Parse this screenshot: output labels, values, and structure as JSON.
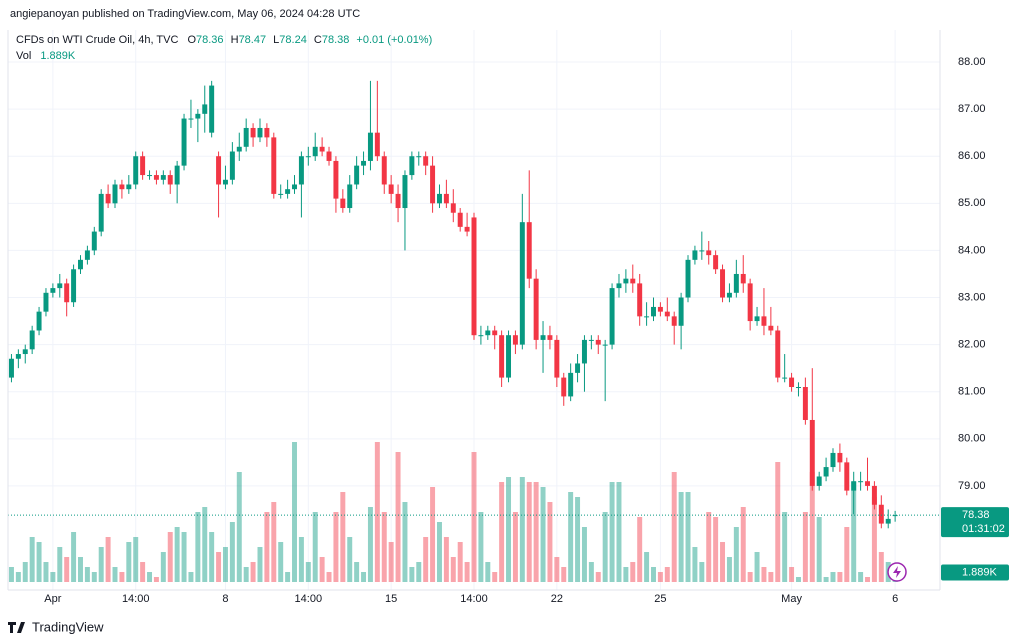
{
  "chart_data": {
    "type": "candlestick",
    "publisher": "angiepanoyan published on TradingView.com, May 06, 2024 04:28 UTC",
    "title": "CFDs on WTI Crude Oil, 4h, TVC",
    "ohlc_labels": [
      "O",
      "H",
      "L",
      "C"
    ],
    "change_label": "+0.01 (+0.01%)",
    "countdown": "01:31:02",
    "brand": "TradingView",
    "up_color": "#089981",
    "down_color": "#f23645",
    "grid": true,
    "xlim": [
      -0.5,
      134.5
    ],
    "ylim": [
      76.79,
      88.68
    ],
    "yticks": [
      {
        "value": 79,
        "label": "79.00"
      },
      {
        "value": 80,
        "label": "80.00"
      },
      {
        "value": 81,
        "label": "81.00"
      },
      {
        "value": 82,
        "label": "82.00"
      },
      {
        "value": 83,
        "label": "83.00"
      },
      {
        "value": 84,
        "label": "84.00"
      },
      {
        "value": 85,
        "label": "85.00"
      },
      {
        "value": 86,
        "label": "86.00"
      },
      {
        "value": 87,
        "label": "87.00"
      },
      {
        "value": 88,
        "label": "88.00"
      }
    ],
    "xticks": [
      {
        "value": 6,
        "label": "Apr"
      },
      {
        "value": 18,
        "label": "14:00"
      },
      {
        "value": 31,
        "label": "8"
      },
      {
        "value": 43,
        "label": "14:00"
      },
      {
        "value": 55,
        "label": "15"
      },
      {
        "value": 67,
        "label": "14:00"
      },
      {
        "value": 79,
        "label": "22"
      },
      {
        "value": 94,
        "label": "25"
      },
      {
        "value": 113,
        "label": "May"
      },
      {
        "value": 128,
        "label": "6"
      }
    ],
    "candles": [
      [
        81.3,
        81.8,
        81.2,
        81.7
      ],
      [
        81.7,
        81.9,
        81.5,
        81.8
      ],
      [
        81.8,
        82.0,
        81.6,
        81.9
      ],
      [
        81.9,
        82.4,
        81.8,
        82.3
      ],
      [
        82.3,
        82.8,
        82.2,
        82.7
      ],
      [
        82.7,
        83.2,
        82.6,
        83.1
      ],
      [
        83.1,
        83.3,
        83.0,
        83.2
      ],
      [
        83.2,
        83.5,
        83.0,
        83.3
      ],
      [
        83.3,
        83.4,
        82.6,
        82.9
      ],
      [
        82.9,
        83.7,
        82.8,
        83.6
      ],
      [
        83.6,
        83.9,
        83.5,
        83.8
      ],
      [
        83.8,
        84.1,
        83.7,
        84.0
      ],
      [
        84.0,
        84.5,
        83.9,
        84.4
      ],
      [
        84.4,
        85.3,
        84.3,
        85.2
      ],
      [
        85.2,
        85.4,
        84.9,
        85.0
      ],
      [
        85.0,
        85.5,
        84.9,
        85.4
      ],
      [
        85.4,
        85.5,
        85.1,
        85.3
      ],
      [
        85.3,
        85.6,
        85.2,
        85.4
      ],
      [
        85.4,
        86.1,
        85.3,
        86.0
      ],
      [
        86.0,
        86.1,
        85.5,
        85.6
      ],
      [
        85.6,
        85.7,
        85.5,
        85.6
      ],
      [
        85.6,
        85.7,
        85.4,
        85.5
      ],
      [
        85.5,
        85.7,
        85.4,
        85.6
      ],
      [
        85.6,
        85.7,
        85.2,
        85.4
      ],
      [
        85.4,
        85.9,
        85.0,
        85.8
      ],
      [
        85.8,
        86.9,
        85.7,
        86.8
      ],
      [
        86.8,
        87.2,
        86.6,
        86.8
      ],
      [
        86.8,
        87.0,
        86.3,
        86.9
      ],
      [
        86.9,
        87.5,
        86.5,
        87.1
      ],
      [
        86.5,
        87.6,
        86.4,
        87.5
      ],
      [
        86.0,
        86.1,
        84.7,
        85.4
      ],
      [
        85.4,
        85.8,
        85.3,
        85.5
      ],
      [
        85.5,
        86.3,
        85.4,
        86.1
      ],
      [
        86.1,
        86.5,
        85.9,
        86.2
      ],
      [
        86.2,
        86.8,
        86.1,
        86.6
      ],
      [
        86.6,
        86.7,
        86.2,
        86.4
      ],
      [
        86.4,
        86.8,
        86.3,
        86.6
      ],
      [
        86.6,
        86.7,
        86.2,
        86.4
      ],
      [
        86.4,
        86.5,
        85.1,
        85.2
      ],
      [
        85.2,
        85.4,
        85.1,
        85.2
      ],
      [
        85.2,
        85.5,
        85.1,
        85.3
      ],
      [
        85.3,
        85.6,
        85.2,
        85.4
      ],
      [
        85.4,
        86.1,
        84.7,
        86.0
      ],
      [
        86.0,
        86.2,
        85.8,
        86.0
      ],
      [
        86.0,
        86.5,
        85.9,
        86.2
      ],
      [
        86.2,
        86.4,
        86.0,
        86.1
      ],
      [
        86.1,
        86.2,
        85.8,
        85.9
      ],
      [
        85.9,
        86.0,
        84.8,
        85.1
      ],
      [
        85.1,
        85.3,
        84.8,
        84.9
      ],
      [
        84.9,
        85.6,
        84.8,
        85.4
      ],
      [
        85.4,
        86.0,
        85.3,
        85.8
      ],
      [
        85.8,
        86.1,
        85.6,
        85.9
      ],
      [
        85.9,
        87.6,
        85.7,
        86.5
      ],
      [
        86.5,
        87.6,
        85.9,
        86.0
      ],
      [
        86.0,
        86.1,
        85.2,
        85.4
      ],
      [
        85.4,
        85.6,
        85.0,
        85.2
      ],
      [
        85.2,
        85.4,
        84.6,
        84.9
      ],
      [
        84.9,
        85.7,
        84.0,
        85.6
      ],
      [
        85.6,
        86.1,
        85.5,
        86.0
      ],
      [
        86.0,
        86.1,
        85.8,
        86.0
      ],
      [
        86.0,
        86.1,
        85.6,
        85.8
      ],
      [
        85.8,
        86.0,
        84.8,
        85.0
      ],
      [
        85.0,
        85.4,
        84.9,
        85.2
      ],
      [
        85.2,
        85.5,
        84.9,
        85.0
      ],
      [
        85.0,
        85.3,
        84.6,
        84.8
      ],
      [
        84.8,
        84.9,
        84.4,
        84.5
      ],
      [
        84.5,
        84.8,
        84.3,
        84.4
      ],
      [
        84.7,
        84.8,
        82.1,
        82.2
      ],
      [
        82.2,
        82.4,
        82.0,
        82.2
      ],
      [
        82.2,
        82.4,
        82.1,
        82.3
      ],
      [
        82.3,
        82.4,
        81.9,
        82.2
      ],
      [
        82.2,
        82.3,
        81.1,
        81.3
      ],
      [
        81.3,
        82.3,
        81.2,
        82.2
      ],
      [
        82.2,
        82.3,
        81.8,
        82.0
      ],
      [
        82.0,
        85.2,
        81.9,
        84.6
      ],
      [
        84.6,
        85.7,
        83.2,
        83.4
      ],
      [
        83.4,
        83.6,
        81.9,
        82.1
      ],
      [
        82.1,
        82.5,
        81.4,
        82.2
      ],
      [
        82.2,
        82.4,
        81.9,
        82.1
      ],
      [
        82.1,
        82.2,
        81.1,
        81.3
      ],
      [
        81.3,
        81.4,
        80.7,
        80.9
      ],
      [
        80.9,
        81.6,
        80.8,
        81.4
      ],
      [
        81.4,
        81.8,
        81.2,
        81.6
      ],
      [
        81.6,
        82.2,
        81.0,
        82.1
      ],
      [
        82.1,
        82.2,
        81.9,
        82.1
      ],
      [
        82.1,
        82.2,
        81.8,
        82.0
      ],
      [
        82.0,
        82.1,
        80.8,
        82.0
      ],
      [
        82.0,
        83.3,
        81.9,
        83.2
      ],
      [
        83.2,
        83.5,
        83.0,
        83.3
      ],
      [
        83.3,
        83.6,
        83.1,
        83.4
      ],
      [
        83.4,
        83.7,
        83.1,
        83.3
      ],
      [
        83.3,
        83.5,
        82.4,
        82.6
      ],
      [
        82.6,
        82.9,
        82.4,
        82.6
      ],
      [
        82.6,
        83.0,
        82.5,
        82.8
      ],
      [
        82.8,
        82.9,
        82.6,
        82.7
      ],
      [
        82.7,
        83.0,
        82.5,
        82.6
      ],
      [
        82.6,
        82.7,
        82.0,
        82.4
      ],
      [
        82.4,
        83.1,
        81.9,
        83.0
      ],
      [
        83.0,
        83.9,
        82.9,
        83.8
      ],
      [
        83.8,
        84.1,
        83.7,
        84.0
      ],
      [
        84.0,
        84.4,
        83.8,
        84.0
      ],
      [
        84.0,
        84.2,
        83.7,
        83.9
      ],
      [
        83.9,
        84.0,
        83.5,
        83.6
      ],
      [
        83.6,
        83.7,
        82.9,
        83.0
      ],
      [
        83.0,
        83.3,
        82.9,
        83.1
      ],
      [
        83.1,
        83.8,
        83.0,
        83.5
      ],
      [
        83.5,
        83.9,
        83.1,
        83.3
      ],
      [
        83.3,
        83.4,
        82.3,
        82.5
      ],
      [
        82.5,
        82.8,
        82.4,
        82.6
      ],
      [
        82.6,
        83.2,
        82.2,
        82.4
      ],
      [
        82.4,
        82.8,
        82.2,
        82.3
      ],
      [
        82.3,
        82.4,
        81.2,
        81.3
      ],
      [
        81.3,
        81.8,
        81.2,
        81.3
      ],
      [
        81.3,
        81.4,
        81.0,
        81.1
      ],
      [
        81.1,
        81.2,
        80.9,
        81.1
      ],
      [
        81.1,
        81.3,
        80.3,
        80.4
      ],
      [
        80.4,
        81.5,
        78.9,
        79.0
      ],
      [
        79.0,
        79.3,
        78.9,
        79.2
      ],
      [
        79.2,
        79.6,
        79.1,
        79.4
      ],
      [
        79.4,
        79.8,
        79.3,
        79.7
      ],
      [
        79.7,
        79.9,
        79.3,
        79.5
      ],
      [
        79.5,
        79.6,
        78.8,
        78.9
      ],
      [
        78.9,
        79.3,
        78.4,
        79.1
      ],
      [
        79.1,
        79.3,
        78.9,
        79.1
      ],
      [
        79.1,
        79.6,
        78.9,
        79.0
      ],
      [
        79.0,
        79.1,
        78.5,
        78.6
      ],
      [
        78.6,
        78.8,
        78.1,
        78.2
      ],
      [
        78.2,
        78.5,
        78.1,
        78.3
      ],
      [
        78.36,
        78.47,
        78.24,
        78.38
      ]
    ],
    "volume": {
      "name": "Vol",
      "vlim": [
        0,
        30000
      ],
      "values": [
        3000,
        2000,
        4000,
        9000,
        8000,
        4000,
        2000,
        7000,
        5000,
        10000,
        5000,
        3000,
        2000,
        7000,
        9000,
        3000,
        2000,
        8000,
        9000,
        4000,
        2000,
        1000,
        6000,
        10000,
        11000,
        10000,
        2000,
        14000,
        15000,
        10000,
        6000,
        7000,
        12000,
        22000,
        3000,
        4000,
        7000,
        14000,
        16000,
        8000,
        2000,
        28000,
        9000,
        4000,
        14000,
        5000,
        2000,
        14000,
        18000,
        9000,
        4000,
        2000,
        15000,
        28000,
        14000,
        8000,
        26000,
        16000,
        3000,
        4000,
        9000,
        19000,
        12000,
        9000,
        5000,
        8000,
        4000,
        26000,
        14000,
        4000,
        2000,
        20000,
        21000,
        14000,
        21000,
        20000,
        20000,
        19000,
        16000,
        5000,
        3000,
        18000,
        17000,
        11000,
        4000,
        2000,
        14000,
        20000,
        20000,
        3000,
        4000,
        13000,
        6000,
        3000,
        2000,
        3000,
        22000,
        18000,
        18000,
        7000,
        4000,
        14000,
        13000,
        8000,
        5000,
        11000,
        15000,
        2000,
        6000,
        3000,
        2000,
        24000,
        14000,
        3000,
        1000,
        14000,
        22000,
        13000,
        1000,
        2000,
        2000,
        11000,
        20000,
        2000,
        1000,
        17000,
        6000,
        4000,
        1889
      ],
      "value_labels": [
        null,
        null,
        null,
        null,
        null,
        null,
        null,
        null,
        null,
        null,
        null,
        null,
        null,
        null,
        null,
        null,
        null,
        null,
        null,
        null,
        null,
        null,
        null,
        null,
        null,
        null,
        null,
        null,
        null,
        null,
        null,
        null,
        null,
        null,
        null,
        null,
        null,
        null,
        null,
        null,
        null,
        null,
        null,
        null,
        null,
        null,
        null,
        null,
        null,
        null,
        null,
        null,
        null,
        null,
        null,
        null,
        null,
        null,
        null,
        null,
        null,
        null,
        null,
        null,
        null,
        null,
        null,
        null,
        null,
        null,
        null,
        null,
        null,
        null,
        null,
        null,
        null,
        null,
        null,
        null,
        null,
        null,
        null,
        null,
        null,
        null,
        null,
        null,
        null,
        null,
        null,
        null,
        null,
        null,
        null,
        null,
        null,
        null,
        null,
        null,
        null,
        null,
        null,
        null,
        null,
        null,
        null,
        null,
        null,
        null,
        null,
        null,
        null,
        null,
        null,
        null,
        null,
        null,
        null,
        null,
        null,
        null,
        null,
        null,
        null,
        null,
        null,
        null,
        "1.889K"
      ]
    }
  }
}
